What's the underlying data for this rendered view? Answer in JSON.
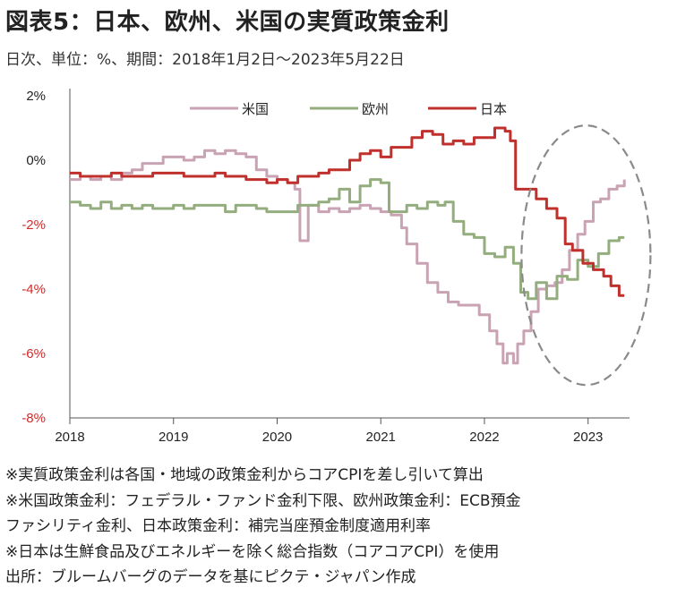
{
  "title": "図表5：日本、欧州、米国の実質政策金利",
  "subtitle": "日次、単位：%、期間：2018年1月2日～2023年5月22日",
  "notes": [
    "※実質政策金利は各国・地域の政策金利からコアCPIを差し引いて算出",
    "※米国政策金利：フェデラル・ファンド金利下限、欧州政策金利：ECB預金",
    "ファシリティ金利、日本政策金利：補完当座預金制度適用利率",
    "※日本は生鮮食品及びエネルギーを除く総合指数（コアコアCPI）を使用",
    "出所：ブルームバーグのデータを基にピクテ・ジャパン作成"
  ],
  "colors": {
    "us": "#c9a3b3",
    "eu": "#94ad7e",
    "jp": "#c0302d",
    "negative_tick": "#d42a2a",
    "axis": "#555555"
  },
  "chart_data": {
    "type": "line",
    "title": "図表5：日本、欧州、米国の実質政策金利",
    "xlabel": "",
    "ylabel": "",
    "ylim": [
      -8,
      2
    ],
    "xlim": [
      2018.0,
      2023.4
    ],
    "y_ticks": [
      "2%",
      "0%",
      "-2%",
      "-4%",
      "-6%",
      "-8%"
    ],
    "x_ticks": [
      "2018",
      "2019",
      "2020",
      "2021",
      "2022",
      "2023"
    ],
    "legend": {
      "placement": "top-center"
    },
    "annotation": "dashed ellipse highlighting mid-2022 to 2023",
    "series": [
      {
        "name": "米国",
        "color": "#c9a3b3",
        "points": [
          [
            2018.0,
            -0.6
          ],
          [
            2018.1,
            -0.5
          ],
          [
            2018.2,
            -0.6
          ],
          [
            2018.3,
            -0.5
          ],
          [
            2018.4,
            -0.6
          ],
          [
            2018.5,
            -0.4
          ],
          [
            2018.6,
            -0.3
          ],
          [
            2018.7,
            -0.1
          ],
          [
            2018.8,
            -0.1
          ],
          [
            2018.9,
            0.1
          ],
          [
            2019.0,
            0.1
          ],
          [
            2019.1,
            0.0
          ],
          [
            2019.2,
            0.1
          ],
          [
            2019.3,
            0.3
          ],
          [
            2019.4,
            0.2
          ],
          [
            2019.5,
            0.3
          ],
          [
            2019.6,
            0.2
          ],
          [
            2019.7,
            0.1
          ],
          [
            2019.8,
            -0.3
          ],
          [
            2019.9,
            -0.5
          ],
          [
            2020.0,
            -0.6
          ],
          [
            2020.1,
            -0.7
          ],
          [
            2020.17,
            -0.9
          ],
          [
            2020.22,
            -2.5
          ],
          [
            2020.3,
            -1.4
          ],
          [
            2020.4,
            -1.6
          ],
          [
            2020.5,
            -1.5
          ],
          [
            2020.6,
            -1.6
          ],
          [
            2020.7,
            -1.5
          ],
          [
            2020.8,
            -1.4
          ],
          [
            2020.9,
            -1.5
          ],
          [
            2021.0,
            -1.6
          ],
          [
            2021.1,
            -1.7
          ],
          [
            2021.2,
            -2.1
          ],
          [
            2021.25,
            -2.6
          ],
          [
            2021.35,
            -3.2
          ],
          [
            2021.45,
            -3.8
          ],
          [
            2021.55,
            -4.1
          ],
          [
            2021.65,
            -4.4
          ],
          [
            2021.75,
            -4.5
          ],
          [
            2021.85,
            -4.5
          ],
          [
            2021.95,
            -4.8
          ],
          [
            2022.05,
            -5.3
          ],
          [
            2022.12,
            -5.7
          ],
          [
            2022.18,
            -6.3
          ],
          [
            2022.22,
            -6.0
          ],
          [
            2022.28,
            -6.3
          ],
          [
            2022.32,
            -5.7
          ],
          [
            2022.38,
            -5.3
          ],
          [
            2022.45,
            -4.7
          ],
          [
            2022.52,
            -4.0
          ],
          [
            2022.6,
            -3.9
          ],
          [
            2022.68,
            -3.8
          ],
          [
            2022.75,
            -3.4
          ],
          [
            2022.82,
            -2.8
          ],
          [
            2022.9,
            -2.3
          ],
          [
            2022.97,
            -1.9
          ],
          [
            2023.05,
            -1.3
          ],
          [
            2023.12,
            -1.2
          ],
          [
            2023.2,
            -0.9
          ],
          [
            2023.28,
            -0.8
          ],
          [
            2023.35,
            -0.6
          ]
        ]
      },
      {
        "name": "欧州",
        "color": "#94ad7e",
        "points": [
          [
            2018.0,
            -1.3
          ],
          [
            2018.1,
            -1.4
          ],
          [
            2018.2,
            -1.5
          ],
          [
            2018.3,
            -1.3
          ],
          [
            2018.4,
            -1.5
          ],
          [
            2018.5,
            -1.4
          ],
          [
            2018.6,
            -1.5
          ],
          [
            2018.7,
            -1.4
          ],
          [
            2018.8,
            -1.5
          ],
          [
            2018.9,
            -1.5
          ],
          [
            2019.0,
            -1.4
          ],
          [
            2019.1,
            -1.5
          ],
          [
            2019.2,
            -1.4
          ],
          [
            2019.3,
            -1.4
          ],
          [
            2019.4,
            -1.4
          ],
          [
            2019.5,
            -1.6
          ],
          [
            2019.6,
            -1.4
          ],
          [
            2019.7,
            -1.4
          ],
          [
            2019.8,
            -1.5
          ],
          [
            2019.9,
            -1.6
          ],
          [
            2020.0,
            -1.6
          ],
          [
            2020.1,
            -1.6
          ],
          [
            2020.2,
            -1.4
          ],
          [
            2020.3,
            -1.4
          ],
          [
            2020.4,
            -1.3
          ],
          [
            2020.5,
            -1.2
          ],
          [
            2020.6,
            -0.9
          ],
          [
            2020.7,
            -1.3
          ],
          [
            2020.8,
            -0.8
          ],
          [
            2020.9,
            -0.6
          ],
          [
            2021.0,
            -0.7
          ],
          [
            2021.08,
            -1.6
          ],
          [
            2021.15,
            -1.6
          ],
          [
            2021.25,
            -1.4
          ],
          [
            2021.35,
            -1.5
          ],
          [
            2021.45,
            -1.3
          ],
          [
            2021.55,
            -1.4
          ],
          [
            2021.62,
            -1.3
          ],
          [
            2021.7,
            -1.9
          ],
          [
            2021.8,
            -2.3
          ],
          [
            2021.9,
            -2.4
          ],
          [
            2022.0,
            -2.9
          ],
          [
            2022.1,
            -3.0
          ],
          [
            2022.2,
            -2.7
          ],
          [
            2022.28,
            -3.2
          ],
          [
            2022.35,
            -4.1
          ],
          [
            2022.42,
            -4.3
          ],
          [
            2022.5,
            -3.8
          ],
          [
            2022.6,
            -4.3
          ],
          [
            2022.7,
            -3.6
          ],
          [
            2022.8,
            -3.7
          ],
          [
            2022.9,
            -3.1
          ],
          [
            2023.0,
            -3.3
          ],
          [
            2023.1,
            -2.9
          ],
          [
            2023.2,
            -2.5
          ],
          [
            2023.3,
            -2.4
          ],
          [
            2023.35,
            -2.4
          ]
        ]
      },
      {
        "name": "日本",
        "color": "#c0302d",
        "points": [
          [
            2018.0,
            -0.4
          ],
          [
            2018.1,
            -0.5
          ],
          [
            2018.2,
            -0.5
          ],
          [
            2018.3,
            -0.5
          ],
          [
            2018.4,
            -0.4
          ],
          [
            2018.5,
            -0.5
          ],
          [
            2018.6,
            -0.5
          ],
          [
            2018.7,
            -0.5
          ],
          [
            2018.8,
            -0.4
          ],
          [
            2018.9,
            -0.4
          ],
          [
            2019.0,
            -0.4
          ],
          [
            2019.1,
            -0.5
          ],
          [
            2019.2,
            -0.5
          ],
          [
            2019.3,
            -0.5
          ],
          [
            2019.4,
            -0.4
          ],
          [
            2019.5,
            -0.5
          ],
          [
            2019.6,
            -0.5
          ],
          [
            2019.7,
            -0.6
          ],
          [
            2019.8,
            -0.6
          ],
          [
            2019.9,
            -0.7
          ],
          [
            2020.0,
            -0.6
          ],
          [
            2020.1,
            -0.7
          ],
          [
            2020.2,
            -0.5
          ],
          [
            2020.3,
            -0.5
          ],
          [
            2020.4,
            -0.4
          ],
          [
            2020.5,
            -0.3
          ],
          [
            2020.6,
            -0.3
          ],
          [
            2020.7,
            0.0
          ],
          [
            2020.8,
            0.2
          ],
          [
            2020.9,
            0.3
          ],
          [
            2021.0,
            0.1
          ],
          [
            2021.1,
            0.4
          ],
          [
            2021.2,
            0.4
          ],
          [
            2021.3,
            0.7
          ],
          [
            2021.4,
            0.9
          ],
          [
            2021.5,
            0.8
          ],
          [
            2021.6,
            0.5
          ],
          [
            2021.7,
            0.6
          ],
          [
            2021.8,
            0.5
          ],
          [
            2021.9,
            0.7
          ],
          [
            2022.0,
            0.7
          ],
          [
            2022.1,
            1.0
          ],
          [
            2022.2,
            0.9
          ],
          [
            2022.25,
            0.6
          ],
          [
            2022.3,
            -0.9
          ],
          [
            2022.4,
            -0.9
          ],
          [
            2022.5,
            -1.2
          ],
          [
            2022.6,
            -1.5
          ],
          [
            2022.7,
            -1.8
          ],
          [
            2022.78,
            -2.6
          ],
          [
            2022.85,
            -2.8
          ],
          [
            2022.95,
            -3.2
          ],
          [
            2023.05,
            -3.4
          ],
          [
            2023.15,
            -3.6
          ],
          [
            2023.22,
            -3.9
          ],
          [
            2023.3,
            -4.2
          ],
          [
            2023.35,
            -4.2
          ]
        ]
      }
    ]
  }
}
